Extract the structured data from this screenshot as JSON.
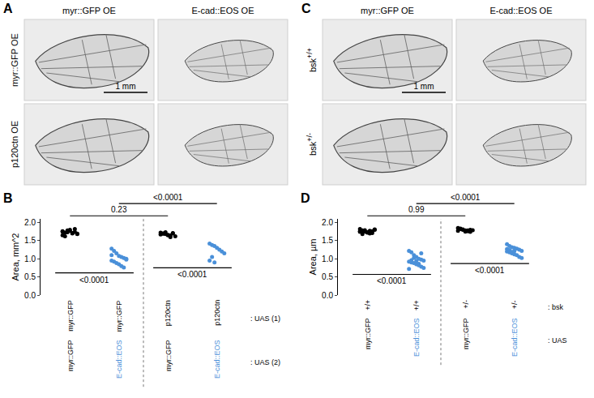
{
  "figure_panels": [
    {
      "letter": "A",
      "columns": [
        "myr::GFP OE",
        "E-cad::EOS OE"
      ],
      "rows": [
        {
          "text": "myr::GFP OE"
        },
        {
          "text": "p120ctn OE"
        }
      ],
      "scale_bar": "1 mm"
    },
    {
      "letter": "C",
      "columns": [
        "myr::GFP OE",
        "E-cad::EOS OE"
      ],
      "rows": [
        {
          "text": "bsk",
          "sup": "+/+"
        },
        {
          "text": "bsk",
          "sup": "+/-"
        }
      ],
      "scale_bar": "1 mm"
    }
  ],
  "chart_data": [
    {
      "type": "scatter",
      "panel": "B",
      "y_label": "Area, mm^2",
      "ylim": [
        0,
        2.1
      ],
      "yticks": [
        {
          "value": 0,
          "label": "0.0"
        },
        {
          "value": 0.5,
          "label": "0.5"
        },
        {
          "value": 1,
          "label": "1.0"
        },
        {
          "value": 1.5,
          "label": "1.5"
        },
        {
          "value": 2,
          "label": "2.0"
        }
      ],
      "groups": [
        {
          "color": "#000000",
          "values": [
            1.75,
            1.72,
            1.78,
            1.8,
            1.7,
            1.74,
            1.68,
            1.76,
            1.62,
            1.73,
            1.77,
            1.71,
            1.82,
            1.69,
            1.65
          ]
        },
        {
          "color": "#4a90d9",
          "values": [
            1.28,
            1.22,
            1.15,
            1.08,
            1.05,
            1.02,
            0.98,
            0.95,
            0.92,
            0.88,
            0.85,
            0.8,
            0.76,
            1.0,
            1.1
          ]
        },
        {
          "color": "#000000",
          "values": [
            1.72,
            1.7,
            1.68,
            1.66,
            1.64,
            1.7,
            1.62,
            1.67,
            1.69,
            1.73,
            1.65,
            1.6,
            1.71
          ]
        },
        {
          "color": "#4a90d9",
          "values": [
            1.42,
            1.38,
            1.35,
            1.3,
            1.25,
            1.2,
            1.15,
            0.95,
            1.05,
            0.9
          ]
        }
      ],
      "label_rows": [
        {
          "name": ": UAS (1)",
          "labels": [
            "myr::GFP",
            "myr::GFP",
            "p120ctn",
            "p120ctn"
          ],
          "colors": [
            "#000000",
            "#000000",
            "#000000",
            "#000000"
          ]
        },
        {
          "name": ": UAS (2)",
          "labels": [
            "myr::GFP",
            "E-cad::EOS",
            "myr::GFP",
            "E-cad::EOS"
          ],
          "colors": [
            "#000000",
            "#4a90d9",
            "#000000",
            "#4a90d9"
          ]
        }
      ],
      "comparisons": [
        {
          "between": [
            0,
            1
          ],
          "label": "<0.0001",
          "kind": "below"
        },
        {
          "between": [
            2,
            3
          ],
          "label": "<0.0001",
          "kind": "below"
        },
        {
          "between": [
            0,
            2
          ],
          "label": "0.23",
          "kind": "above"
        },
        {
          "between": [
            1,
            3
          ],
          "label": "<0.0001",
          "kind": "above"
        }
      ]
    },
    {
      "type": "scatter",
      "panel": "D",
      "y_label": "Area, µm",
      "ylim": [
        0,
        2.1
      ],
      "yticks": [
        {
          "value": 0,
          "label": "0.0"
        },
        {
          "value": 0.5,
          "label": "0.5"
        },
        {
          "value": 1,
          "label": "1.0"
        },
        {
          "value": 1.5,
          "label": "1.5"
        },
        {
          "value": 2,
          "label": "2.0"
        }
      ],
      "groups": [
        {
          "color": "#000000",
          "values": [
            1.82,
            1.78,
            1.75,
            1.72,
            1.7,
            1.76,
            1.8,
            1.74,
            1.68,
            1.79,
            1.73,
            1.77,
            1.71,
            1.81,
            1.76,
            1.74
          ]
        },
        {
          "color": "#4a90d9",
          "values": [
            1.22,
            1.18,
            1.1,
            1.05,
            1.0,
            0.98,
            0.95,
            0.92,
            0.9,
            0.88,
            0.85,
            0.82,
            0.78,
            0.75,
            0.72,
            0.96,
            1.02,
            0.94,
            0.86,
            1.15
          ]
        },
        {
          "color": "#000000",
          "values": [
            1.85,
            1.82,
            1.8,
            1.78,
            1.76,
            1.74,
            1.79,
            1.77,
            1.83,
            1.81,
            1.75,
            1.78,
            1.8
          ]
        },
        {
          "color": "#4a90d9",
          "values": [
            1.4,
            1.35,
            1.32,
            1.3,
            1.28,
            1.25,
            1.22,
            1.2,
            1.18,
            1.15,
            1.12,
            1.1,
            1.05,
            1.02,
            1.27,
            1.24,
            1.19,
            1.21
          ]
        }
      ],
      "label_rows": [
        {
          "name": ": bsk",
          "labels": [
            "+/+",
            "+/+",
            "+/-",
            "+/-"
          ],
          "colors": [
            "#000000",
            "#000000",
            "#000000",
            "#000000"
          ]
        },
        {
          "name": ": UAS",
          "labels": [
            "myr::GFP",
            "E-cad::EOS",
            "myr::GFP",
            "E-cad::EOS"
          ],
          "colors": [
            "#000000",
            "#4a90d9",
            "#000000",
            "#4a90d9"
          ]
        }
      ],
      "comparisons": [
        {
          "between": [
            0,
            1
          ],
          "label": "<0.0001",
          "kind": "below"
        },
        {
          "between": [
            2,
            3
          ],
          "label": "<0.0001",
          "kind": "below"
        },
        {
          "between": [
            0,
            2
          ],
          "label": "0.99",
          "kind": "above"
        },
        {
          "between": [
            1,
            3
          ],
          "label": "<0.0001",
          "kind": "above"
        }
      ]
    }
  ]
}
